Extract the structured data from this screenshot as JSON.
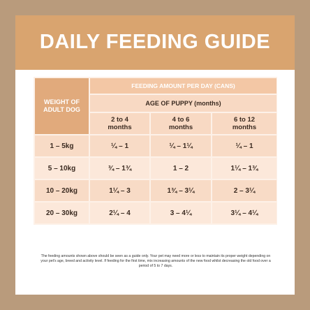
{
  "header": {
    "title": "DAILY FEEDING GUIDE"
  },
  "table": {
    "weight_header": "WEIGHT OF ADULT DOG",
    "amount_header": "FEEDING AMOUNT PER DAY (CANS)",
    "age_header": "AGE OF PUPPY (months)",
    "columns": [
      "2 to 4 months",
      "4 to 6 months",
      "6 to 12 months"
    ],
    "rows": [
      [
        "1 – 5kg",
        "¼ – 1",
        "¼ – 1¼",
        "¼ – 1"
      ],
      [
        "5 – 10kg",
        "¾ – 1¾",
        "1 – 2",
        "1¼ – 1¾"
      ],
      [
        "10 – 20kg",
        "1¼ – 3",
        "1¾ – 3¼",
        "2 – 3¼"
      ],
      [
        "20 – 30kg",
        "2¼ – 4",
        "3 – 4¼",
        "3¼ – 4¼"
      ]
    ]
  },
  "footnote": "The feeding amounts shown above should be seen as a guide only. Your pet may need more or less to maintain its proper weight depending on your pet's age, breed and activity level. If feeding for the first time, mix increasing amounts of the new food whilst decreasing the old food over a period of 5 to 7 days."
}
